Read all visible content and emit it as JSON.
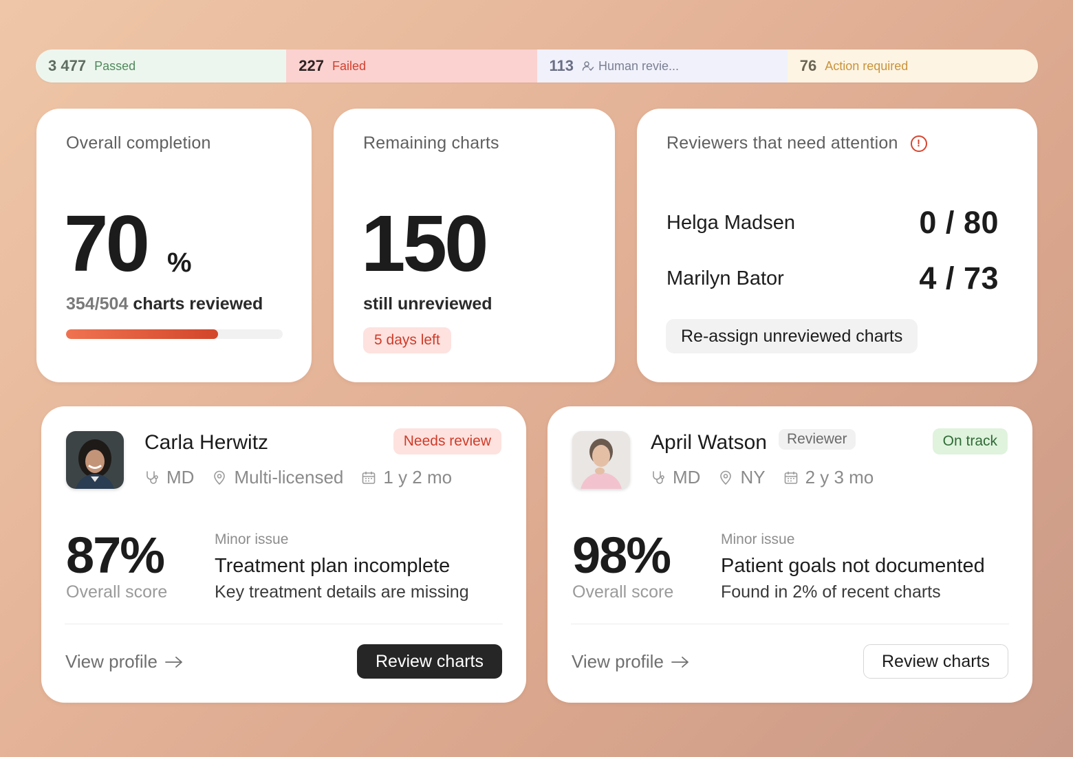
{
  "status_bar": {
    "passed": {
      "count": "3 477",
      "label": "Passed"
    },
    "failed": {
      "count": "227",
      "label": "Failed"
    },
    "human_review": {
      "count": "113",
      "label": "Human revie...",
      "icon": "user-check-icon"
    },
    "action_required": {
      "count": "76",
      "label": "Action required"
    }
  },
  "completion": {
    "title": "Overall completion",
    "value": "70",
    "unit": "%",
    "reviewed_fraction": "354/504",
    "reviewed_suffix": " charts reviewed",
    "progress": 0.7
  },
  "remaining": {
    "title": "Remaining charts",
    "value": "150",
    "subtitle": "still unreviewed",
    "deadline": "5 days left"
  },
  "attention": {
    "title": "Reviewers that need attention",
    "icon": "alert-circle-icon",
    "reviewers": [
      {
        "name": "Helga Madsen",
        "count": "0 / 80"
      },
      {
        "name": "Marilyn Bator",
        "count": "4 / 73"
      }
    ],
    "action_label": "Re-assign unreviewed charts"
  },
  "people": [
    {
      "name": "Carla Herwitz",
      "role_chip": "",
      "status": "Needs review",
      "credential": "MD",
      "location": "Multi-licensed",
      "tenure": "1 y 2 mo",
      "score": "87%",
      "score_label": "Overall score",
      "issue_kicker": "Minor issue",
      "issue_title": "Treatment plan incomplete",
      "issue_desc": "Key treatment details are missing",
      "view_profile": "View profile",
      "review_label": "Review charts"
    },
    {
      "name": "April Watson",
      "role_chip": "Reviewer",
      "status": "On track",
      "credential": "MD",
      "location": "NY",
      "tenure": "2 y 3 mo",
      "score": "98%",
      "score_label": "Overall score",
      "issue_kicker": "Minor issue",
      "issue_title": "Patient goals not documented",
      "issue_desc": "Found in 2% of recent charts",
      "view_profile": "View profile",
      "review_label": "Review charts"
    }
  ],
  "colors": {
    "accent_red": "#cf3b28",
    "progress_start": "#ef7350",
    "progress_end": "#d2462a",
    "success_green": "#2f6b35"
  }
}
